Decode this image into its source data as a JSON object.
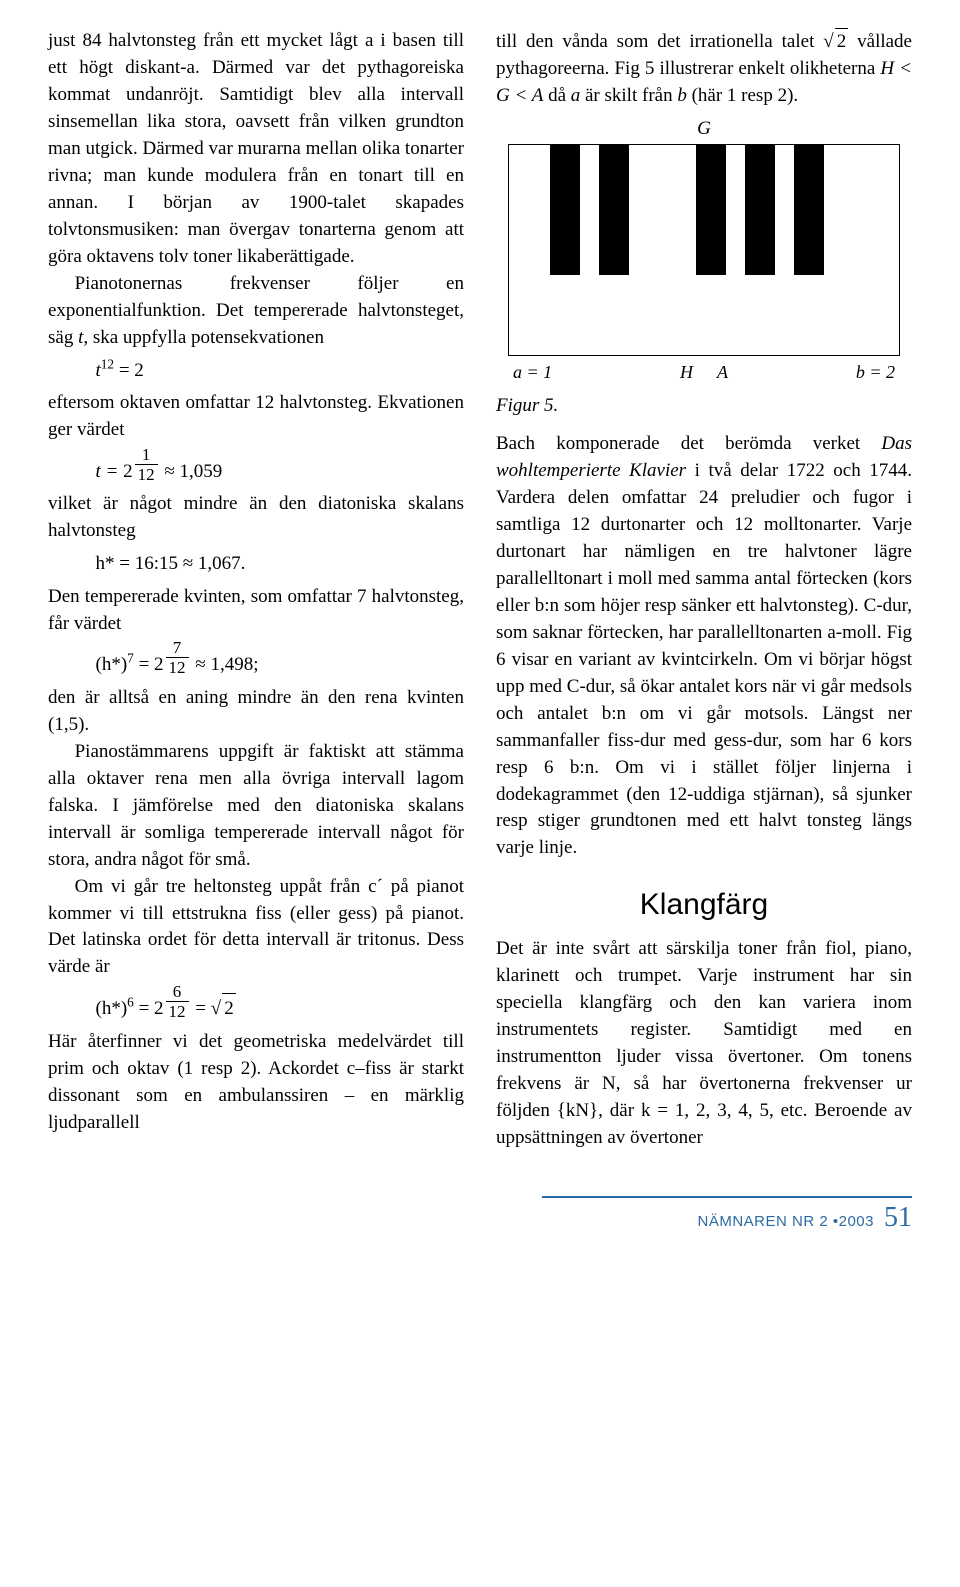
{
  "left": {
    "p1": "just 84 halvtonsteg från ett mycket lågt a i basen till ett högt diskant-a. Därmed var det pythagoreiska kommat undanröjt. Samtidigt blev alla intervall sinsemellan lika stora, oavsett från vilken grundton man utgick. Därmed var murarna mellan olika tonarter rivna; man kunde modulera från en tonart till en annan. I början av 1900-talet skapades tolvtonsmusiken: man övergav tonarterna genom att göra oktavens tolv toner likaberättigade.",
    "p2a": "Pianotonernas frekvenser följer en exponentialfunktion. Det tempererade halvtonsteget, säg ",
    "p2b": ", ska uppfylla potensekvationen",
    "eq1_lhs": "t",
    "eq1_exp": "12",
    "eq1_rhs": " = 2",
    "p3": "eftersom oktaven omfattar 12 halvtonsteg. Ekvationen ger värdet",
    "eq2_prefix": "t = ",
    "eq2_base": "2",
    "eq2_frac_top": "1",
    "eq2_frac_bot": "12",
    "eq2_suffix": " ≈ 1,059",
    "p4": "vilket är något mindre än den diatoniska skalans halvtonsteg",
    "eq3": "h* = 16:15 ≈ 1,067.",
    "p5": "Den tempererade kvinten, som omfattar 7 halvtonsteg, får värdet",
    "eq4_prefix": "(h*)",
    "eq4_outer_exp": "7",
    "eq4_eq": " = ",
    "eq4_base": "2",
    "eq4_frac_top": "7",
    "eq4_frac_bot": "12",
    "eq4_suffix": " ≈ 1,498;",
    "p6": "den är alltså en aning mindre än den rena kvinten (1,5).",
    "p7": "Pianostämmarens uppgift är faktiskt att stämma alla oktaver rena men alla övriga intervall lagom falska. I jämförelse med den diatoniska skalans intervall är somliga tempererade intervall något för stora, andra något för små.",
    "p8": "Om vi går tre heltonsteg uppåt från c´ på pianot kommer vi till ettstrukna fiss (eller gess) på pianot. Det latinska ordet för detta intervall är tritonus. Dess värde är",
    "eq5_prefix": "(h*)",
    "eq5_outer_exp": "6",
    "eq5_eq": " = ",
    "eq5_base": "2",
    "eq5_frac_top": "6",
    "eq5_frac_bot": "12",
    "eq5_mid": " = ",
    "eq5_sqrt": "2",
    "p9": "Här återfinner vi det geometriska medelvärdet till prim och oktav (1 resp 2). Ackordet c–fiss är starkt dissonant som en ambulanssiren – en märklig ljudparallell"
  },
  "right": {
    "p1a": "till den vånda som det irrationella talet ",
    "p1_sqrt": "2",
    "p1b": " vållade pythagoreerna. Fig 5 illustrerar enkelt olikheterna ",
    "p1_ineq": "H < G < A",
    "p1c": " då ",
    "p1_a": "a",
    "p1d": " är skilt från ",
    "p1_b": "b",
    "p1e": " (här 1 resp 2).",
    "piano": {
      "g_label": "G",
      "white_count": 8,
      "black_positions": [
        0.105,
        0.23,
        0.48,
        0.605,
        0.73
      ],
      "labels": {
        "a": "a = 1",
        "H": "H",
        "A": "A",
        "b": "b = 2"
      }
    },
    "fig_caption": "Figur 5.",
    "p2a": "Bach komponerade det berömda verket ",
    "p2_em": "Das wohltemperierte Klavier",
    "p2b": " i två delar 1722 och 1744. Vardera delen omfattar 24 preludier och fugor i samtliga 12 durtonarter och 12 molltonarter. Varje durtonart har nämligen en tre halvtoner lägre parallelltonart i moll med samma antal förtecken (kors eller b:n som höjer resp sänker ett halvtonsteg). C-dur, som saknar förtecken, har parallelltonarten a-moll. Fig 6 visar en variant av kvintcirkeln. Om vi börjar högst upp med C-dur, så ökar antalet kors när vi går medsols och antalet b:n om vi går motsols. Längst ner sammanfaller fiss-dur med gess-dur, som har 6 kors resp 6 b:n. Om vi i stället följer linjerna i dodekagrammet (den 12-uddiga stjärnan), så sjunker resp stiger grundtonen med ett halvt tonsteg längs varje linje.",
    "section_title": "Klangfärg",
    "p3": "Det är inte svårt att särskilja toner från fiol, piano, klarinett och trumpet. Varje instrument har sin speciella klangfärg och den kan variera inom instrumentets register. Samtidigt med en instrumentton ljuder vissa övertoner. Om tonens frekvens är N, så har övertonerna frekvenser ur följden {kN}, där k = 1, 2, 3, 4, 5, etc. Beroende av uppsättningen av övertoner"
  },
  "footer": {
    "journal": "NÄMNAREN NR 2",
    "year": "•2003",
    "page": "51"
  }
}
